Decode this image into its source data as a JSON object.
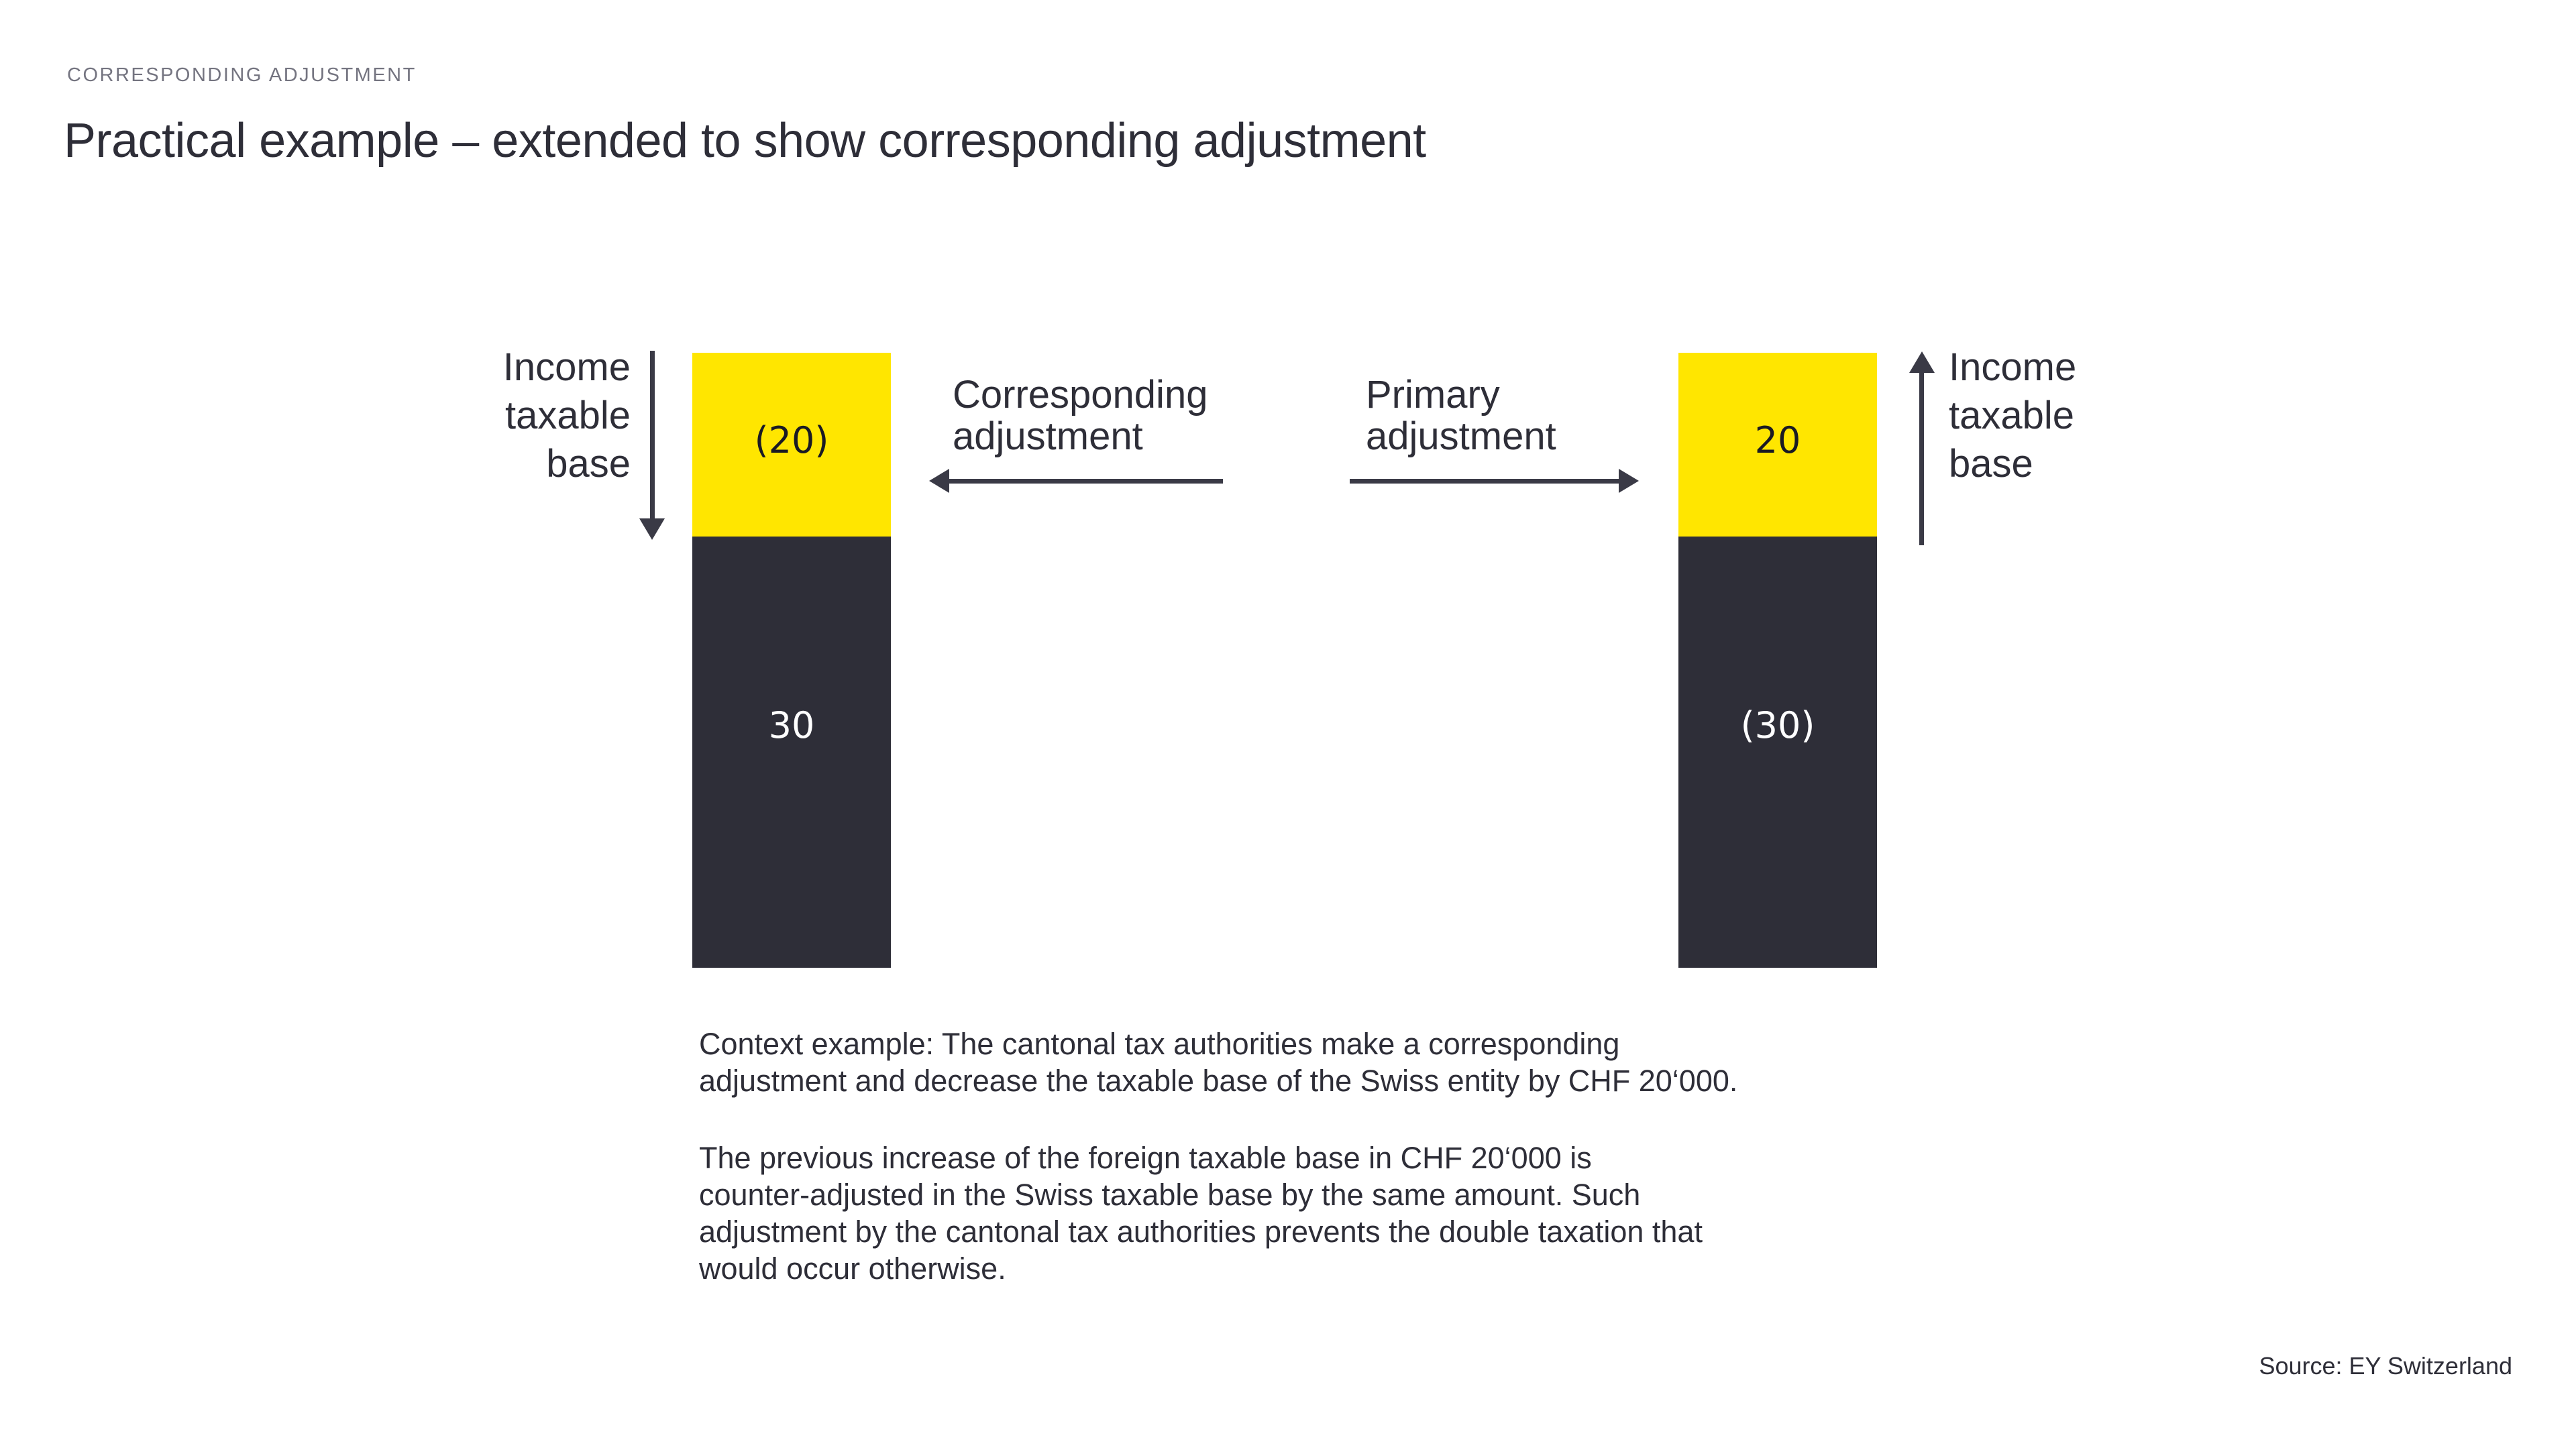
{
  "header": {
    "eyebrow": "CORRESPONDING ADJUSTMENT",
    "title": "Practical example – extended to show corresponding adjustment"
  },
  "colors": {
    "brand_yellow": "#FFE600",
    "dark_gray": "#2E2E38",
    "eyebrow_gray": "#747480",
    "background": "#FFFFFF"
  },
  "diagram": {
    "left_axis_label": "Income\ntaxable\nbase",
    "right_axis_label": "Income\ntaxable\nbase",
    "corresponding_label": "Corresponding\nadjustment",
    "primary_label": "Primary\nadjustment",
    "arrows": {
      "left_axis_direction": "down",
      "right_axis_direction": "up",
      "corresponding_direction": "left",
      "primary_direction": "right"
    },
    "bars": {
      "left": {
        "top_value": "(20)",
        "top_color": "#FFE600",
        "bottom_value": "30",
        "bottom_color": "#2E2E38"
      },
      "right": {
        "top_value": "20",
        "top_color": "#FFE600",
        "bottom_value": "(30)",
        "bottom_color": "#2E2E38"
      }
    }
  },
  "context": {
    "paragraph1": "Context example: The cantonal tax authorities make a corresponding\nadjustment and decrease the taxable base of the Swiss entity by CHF 20‘000.",
    "paragraph2": "The previous increase of the foreign taxable base in CHF 20‘000 is\ncounter-adjusted in the Swiss taxable base by the same amount. Such\nadjustment by the cantonal tax authorities prevents the double taxation that\nwould occur otherwise."
  },
  "source": {
    "text": "Source: EY Switzerland"
  }
}
